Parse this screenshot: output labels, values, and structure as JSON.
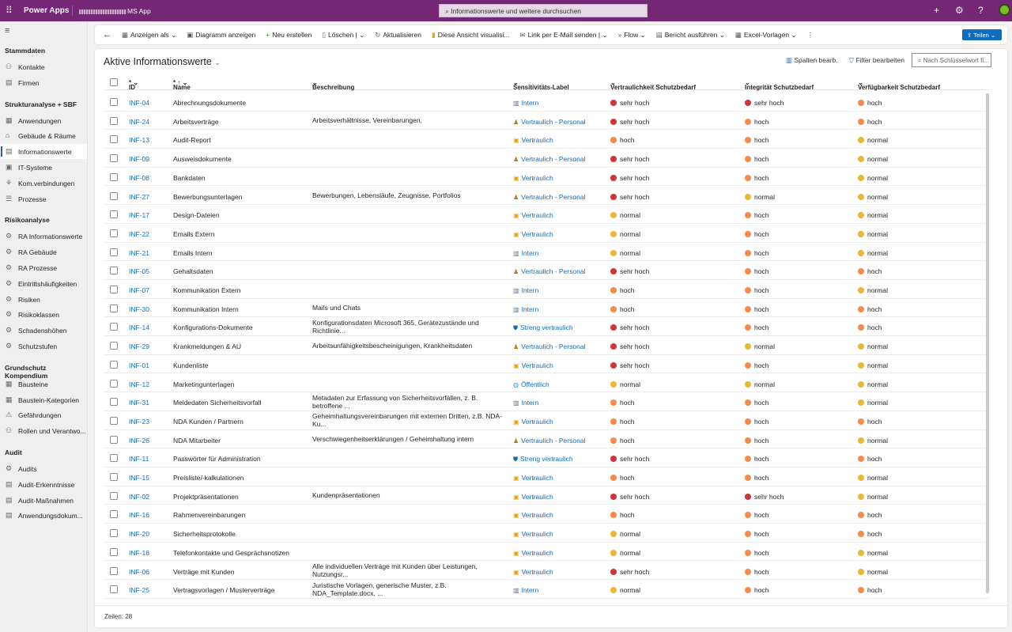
{
  "topbar": {
    "app_brand": "Power Apps",
    "app_name": "MS App",
    "search_placeholder": "Informationswerte und weitere durchsuchen",
    "bg_color": "#742774"
  },
  "sidebar": {
    "sections": [
      {
        "title": "Stammdaten",
        "items": [
          "Kontakte",
          "Firmen"
        ]
      },
      {
        "title": "Strukturanalyse + SBF",
        "items": [
          "Anwendungen",
          "Gebäude & Räume",
          "Informationswerte",
          "IT-Systeme",
          "Kom.verbindungen",
          "Prozesse"
        ]
      },
      {
        "title": "Risikoanalyse",
        "items": [
          "RA Informationswerte",
          "RA Gebäude",
          "RA Prozesse",
          "Eintrittshäufigkeiten",
          "Risiken",
          "Risikoklassen",
          "Schadenshöhen",
          "Schutzstufen"
        ]
      },
      {
        "title": "Grundschutz Kompendium",
        "items": [
          "Bausteine",
          "Baustein-Kategorien",
          "Gefährdungen",
          "Rollen und Verantwo..."
        ]
      },
      {
        "title": "Audit",
        "items": [
          "Audits",
          "Audit-Erkenntnisse",
          "Audit-Maßnahmen",
          "Anwendungsdokum..."
        ]
      }
    ],
    "selected": "Informationswerte"
  },
  "toolbar": {
    "show_as": "Anzeigen als",
    "chart": "Diagramm anzeigen",
    "new": "Neu erstellen",
    "delete": "Löschen",
    "refresh": "Aktualisieren",
    "visualize": "Diese Ansicht visualisi...",
    "email_link": "Link per E-Mail senden",
    "flow": "Flow",
    "report": "Bericht ausführen",
    "excel": "Excel-Vorlagen",
    "share": "Teilen"
  },
  "view": {
    "title": "Aktive Informationswerte",
    "edit_columns": "Spalten bearb.",
    "edit_filters": "Filter bearbeiten",
    "keyword_placeholder": "Nach Schlüsselwort fi...",
    "rows_label": "Zeilen: 28"
  },
  "columns": [
    "ID",
    "Name",
    "Beschreibung",
    "Sensitivitäts-Label",
    "Vertraulichkeit Schutzbedarf",
    "Integrität Schutzbedarf",
    "Verfügbarkeit Schutzbedarf"
  ],
  "level_colors": {
    "sehr hoch": "#d13438",
    "hoch": "#f7894a",
    "normal": "#eab635"
  },
  "label_icons": {
    "Intern": "building-icon",
    "Vertraulich": "lock-icon",
    "Vertraulich - Personal": "person-icon",
    "Streng vertraulich": "shield-icon",
    "Öffentlich": "globe-icon"
  },
  "rows": [
    [
      "INF-04",
      "Abrechnungsdokumente",
      "",
      "Intern",
      "sehr hoch",
      "sehr hoch",
      "hoch"
    ],
    [
      "INF-24",
      "Arbeitsverträge",
      "Arbeitsverhältnisse, Vereinbarungen,",
      "Vertraulich - Personal",
      "sehr hoch",
      "hoch",
      "hoch"
    ],
    [
      "INF-13",
      "Audit-Report",
      "",
      "Vertraulich",
      "hoch",
      "hoch",
      "normal"
    ],
    [
      "INF-09",
      "Ausweisdokumente",
      "",
      "Vertraulich - Personal",
      "sehr hoch",
      "hoch",
      "normal"
    ],
    [
      "INF-08",
      "Bankdaten",
      "",
      "Vertraulich",
      "sehr hoch",
      "hoch",
      "normal"
    ],
    [
      "INF-27",
      "Bewerbungsunterlagen",
      "Bewerbungen, Lebensläufe, Zeugnisse, Portfolios",
      "Vertraulich - Personal",
      "sehr hoch",
      "normal",
      "normal"
    ],
    [
      "INF-17",
      "Design-Dateien",
      "",
      "Vertraulich",
      "normal",
      "hoch",
      "normal"
    ],
    [
      "INF-22",
      "Emails Extern",
      "",
      "Vertraulich",
      "normal",
      "hoch",
      "normal"
    ],
    [
      "INF-21",
      "Emails Intern",
      "",
      "Intern",
      "normal",
      "hoch",
      "normal"
    ],
    [
      "INF-05",
      "Gehaltsdaten",
      "",
      "Vertraulich - Personal",
      "sehr hoch",
      "hoch",
      "hoch"
    ],
    [
      "INF-07",
      "Kommunikation Extern",
      "",
      "Intern",
      "hoch",
      "hoch",
      "normal"
    ],
    [
      "INF-30",
      "Kommunikation Intern",
      "Mails und Chats",
      "Intern",
      "hoch",
      "hoch",
      "hoch"
    ],
    [
      "INF-14",
      "Konfigurations-Dokumente",
      "Konfigurationsdaten Microsoft 365, Gerätezustände und Richtlinie...",
      "Streng vertraulich",
      "sehr hoch",
      "hoch",
      "hoch"
    ],
    [
      "INF-29",
      "Krankmeldungen & AU",
      "Arbeitsunfähigkeitsbescheinigungen, Krankheitsdaten",
      "Vertraulich - Personal",
      "sehr hoch",
      "normal",
      "normal"
    ],
    [
      "INF-01",
      "Kundenliste",
      "",
      "Vertraulich",
      "sehr hoch",
      "hoch",
      "normal"
    ],
    [
      "INF-12",
      "Marketingunterlagen",
      "",
      "Öffentlich",
      "normal",
      "normal",
      "normal"
    ],
    [
      "INF-31",
      "Meldedaten Sicherheitsvorfall",
      "Metadaten zur Erfassung von Sicherheitsvorfällen, z. B. betroffene ...",
      "Intern",
      "hoch",
      "hoch",
      "normal"
    ],
    [
      "INF-23",
      "NDA Kunden / Partnern",
      "Geheimhaltungsvereinbarungen mit externen Dritten, z.B. NDA-Ku...",
      "Vertraulich",
      "hoch",
      "hoch",
      "hoch"
    ],
    [
      "INF-26",
      "NDA Mitarbeiter",
      "Verschwiegenheitserklärungen / Geheimhaltung intern",
      "Vertraulich - Personal",
      "hoch",
      "hoch",
      "normal"
    ],
    [
      "INF-11",
      "Passwörter für Administration",
      "",
      "Streng vertraulich",
      "sehr hoch",
      "hoch",
      "hoch"
    ],
    [
      "INF-15",
      "Preisliste/-kalkulationen",
      "",
      "Vertraulich",
      "hoch",
      "hoch",
      "normal"
    ],
    [
      "INF-02",
      "Projektpräsentationen",
      "Kundenpräsentationen",
      "Vertraulich",
      "sehr hoch",
      "sehr hoch",
      "normal"
    ],
    [
      "INF-16",
      "Rahmenvereinbarungen",
      "",
      "Vertraulich",
      "hoch",
      "hoch",
      "hoch"
    ],
    [
      "INF-20",
      "Sicherheitsprotokolle",
      "",
      "Vertraulich",
      "normal",
      "hoch",
      "hoch"
    ],
    [
      "INF-18",
      "Telefonkontakte und Gesprächsnotizen",
      "",
      "Vertraulich",
      "normal",
      "hoch",
      "normal"
    ],
    [
      "INF-06",
      "Verträge mit Kunden",
      "Alle individuellen Verträge mit Kunden über Leistungen, Nutzungsr...",
      "Vertraulich",
      "sehr hoch",
      "hoch",
      "normal"
    ],
    [
      "INF-25",
      "Vertragsvorlagen / Musterverträge",
      "Juristische Vorlagen, generische Muster, z.B. NDA_Template.docx, ...",
      "Intern",
      "normal",
      "hoch",
      "hoch"
    ]
  ]
}
